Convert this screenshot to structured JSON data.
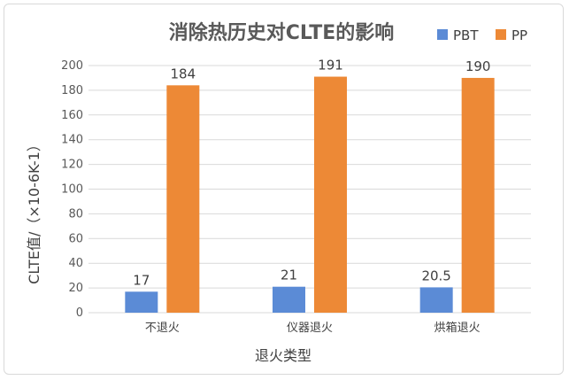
{
  "chart_data": {
    "type": "bar",
    "title": "消除热历史对CLTE的影响",
    "xlabel": "退火类型",
    "ylabel": "CLTE值/（×10-6K-1）",
    "categories": [
      "不退火",
      "仪器退火",
      "烘箱退火"
    ],
    "series": [
      {
        "name": "PBT",
        "values": [
          17,
          21,
          20.5
        ],
        "labels": [
          "17",
          "21",
          "20.5"
        ],
        "color": "#5b8bd6"
      },
      {
        "name": "PP",
        "values": [
          184,
          191,
          190
        ],
        "labels": [
          "184",
          "191",
          "190"
        ],
        "color": "#ed8936"
      }
    ],
    "ylim": [
      0,
      200
    ],
    "yticks": [
      0,
      20,
      40,
      60,
      80,
      100,
      120,
      140,
      160,
      180,
      200
    ],
    "grid": true,
    "legend_position": "top-right"
  }
}
